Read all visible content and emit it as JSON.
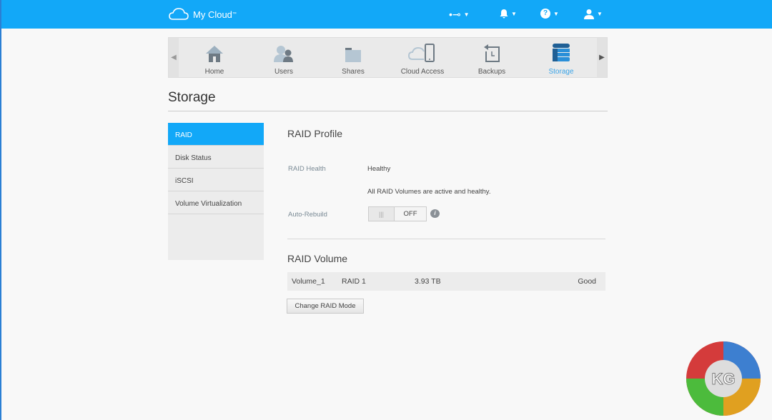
{
  "header": {
    "app_title": "My Cloud",
    "trademark": "™",
    "icons": [
      "usb-icon",
      "bell-icon",
      "help-icon",
      "user-icon"
    ]
  },
  "nav": {
    "items": [
      {
        "label": "Home",
        "icon": "home-icon"
      },
      {
        "label": "Users",
        "icon": "users-icon"
      },
      {
        "label": "Shares",
        "icon": "folder-icon"
      },
      {
        "label": "Cloud Access",
        "icon": "cloud-device-icon"
      },
      {
        "label": "Backups",
        "icon": "backup-icon"
      },
      {
        "label": "Storage",
        "icon": "storage-icon"
      }
    ],
    "active": "Storage"
  },
  "page": {
    "title": "Storage"
  },
  "sidebar": {
    "items": [
      {
        "label": "RAID"
      },
      {
        "label": "Disk Status"
      },
      {
        "label": "iSCSI"
      },
      {
        "label": "Volume Virtualization"
      }
    ]
  },
  "raid_profile": {
    "title": "RAID Profile",
    "health_label": "RAID Health",
    "health_value": "Healthy",
    "health_message": "All RAID Volumes are active and healthy.",
    "auto_rebuild_label": "Auto-Rebuild",
    "auto_rebuild_state": "OFF",
    "grip": "|||"
  },
  "raid_volume": {
    "title": "RAID Volume",
    "rows": [
      {
        "name": "Volume_1",
        "type": "RAID 1",
        "size": "3.93 TB",
        "status": "Good"
      }
    ],
    "change_button": "Change RAID Mode"
  },
  "watermark": {
    "text": "KG"
  },
  "colors": {
    "accent": "#12a8f8",
    "active_nav": "#3aa4e8"
  }
}
